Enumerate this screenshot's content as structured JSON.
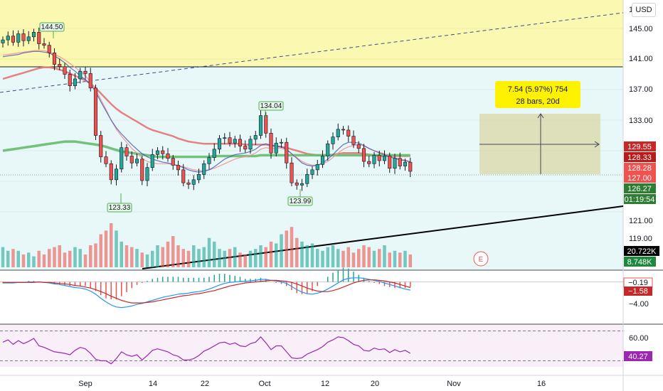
{
  "currency": "USD",
  "price_axis": {
    "ticks": [
      "145.00",
      "141.00",
      "137.00",
      "133.00",
      "121.00",
      "119.00"
    ],
    "top_partial_label": "1"
  },
  "time_axis": [
    "Sep",
    "14",
    "22",
    "Oct",
    "12",
    "20",
    "Nov",
    "16"
  ],
  "price_badges": [
    {
      "label": "129.55",
      "color": "#c62828"
    },
    {
      "label": "128.33",
      "color": "#b71c1c"
    },
    {
      "label": "128.28",
      "color": "#ef5350"
    },
    {
      "label": "127.00",
      "color": "#ef5350"
    },
    {
      "label": "126.27",
      "color": "#2e7d32"
    },
    {
      "label": "01:19:54",
      "color": "#2e7d32"
    },
    {
      "label": "20.722K",
      "color": "#000000"
    },
    {
      "label": "8.748K",
      "color": "#1b8a3c"
    }
  ],
  "annotations": {
    "high_label": "144.50",
    "low_label_1": "123.33",
    "mid_high_label": "134.04",
    "low_label_2": "123.99",
    "measure_line1": "7.54 (5.97%) 754",
    "measure_line2": "28 bars, 20d",
    "earnings_marker": "E"
  },
  "macd_panel": {
    "ticks": [
      "−4.00"
    ],
    "badges": [
      {
        "label": "−0.19",
        "color": "#ffffff"
      },
      {
        "label": "−1.58",
        "color": "#c62828"
      }
    ]
  },
  "rsi_panel": {
    "ticks": [
      "60.00"
    ],
    "badges": [
      {
        "label": "40.27",
        "color": "#9c27b0"
      }
    ]
  },
  "colors": {
    "up": "#26a69a",
    "down": "#ef5350",
    "zone_yellow": "#fbf9b1",
    "zone_cyan": "#e8f8f8",
    "ma200": "#4caf50",
    "ma50": "#e53935"
  },
  "chart_data": {
    "type": "candlestick",
    "ylim": [
      117,
      148
    ],
    "closes": [
      143.5,
      144.0,
      143.2,
      144.3,
      143.4,
      143.9,
      144.5,
      143.0,
      142.8,
      141.8,
      140.3,
      140.0,
      139.0,
      137.5,
      138.4,
      139.4,
      139.1,
      137.2,
      131.0,
      128.2,
      127.3,
      125.2,
      126.6,
      129.4,
      128.3,
      127.4,
      127.9,
      125.1,
      126.8,
      128.5,
      129.0,
      128.6,
      128.0,
      127.1,
      126.5,
      124.8,
      124.6,
      125.2,
      125.9,
      127.3,
      128.1,
      129.2,
      130.6,
      130.7,
      130.0,
      130.5,
      129.6,
      129.2,
      130.5,
      131.0,
      133.6,
      131.3,
      128.7,
      130.0,
      130.1,
      127.4,
      124.8,
      124.5,
      124.7,
      125.9,
      126.5,
      127.2,
      128.3,
      129.9,
      130.8,
      131.8,
      131.7,
      130.9,
      129.8,
      129.3,
      127.6,
      127.3,
      128.4,
      127.7,
      128.3,
      126.7,
      128.0,
      127.0,
      127.5,
      126.3
    ],
    "volume": [
      0.55,
      0.45,
      0.5,
      0.45,
      0.35,
      0.4,
      0.3,
      0.45,
      0.35,
      0.5,
      0.55,
      0.6,
      0.4,
      0.45,
      0.55,
      0.5,
      0.35,
      0.6,
      0.65,
      0.9,
      1.0,
      1.2,
      1.0,
      0.7,
      0.6,
      0.55,
      0.5,
      0.4,
      0.35,
      0.45,
      0.6,
      0.55,
      0.7,
      0.85,
      0.6,
      0.5,
      0.45,
      0.6,
      0.5,
      0.55,
      0.8,
      0.7,
      0.5,
      0.45,
      0.5,
      0.55,
      0.4,
      0.35,
      0.45,
      0.5,
      0.6,
      0.55,
      0.7,
      0.65,
      0.9,
      1.0,
      1.1,
      0.8,
      0.7,
      0.6,
      0.65,
      0.5,
      0.45,
      0.55,
      0.6,
      0.5,
      0.45,
      0.55,
      0.4,
      0.5,
      0.6,
      0.55,
      0.45,
      0.5,
      0.6,
      0.4,
      0.45,
      0.4,
      0.45,
      0.35
    ],
    "series": [
      {
        "values": [
          138.4,
          138.6,
          138.8,
          139.0,
          139.2,
          139.4,
          139.6,
          139.8,
          139.9,
          139.9,
          139.8,
          139.6,
          139.4,
          139.1,
          138.8,
          138.5,
          138.2,
          137.8,
          137.2,
          136.5,
          135.8,
          135.1,
          134.5,
          134.0,
          133.6,
          133.2,
          132.8,
          132.4,
          132.0,
          131.7,
          131.5,
          131.3,
          131.1,
          130.9,
          130.6,
          130.4,
          130.2,
          130.1,
          130.0,
          129.9,
          129.9,
          129.9,
          129.9,
          129.9,
          129.9,
          129.9,
          129.9,
          129.8,
          129.8,
          129.8,
          129.8,
          129.8,
          129.7,
          129.6,
          129.5,
          129.4,
          129.2,
          129.0,
          128.8,
          128.6,
          128.5,
          128.4,
          128.4,
          128.4,
          128.5,
          128.6,
          128.7,
          128.7,
          128.7,
          128.7,
          128.6,
          128.5,
          128.4,
          128.3,
          128.3,
          128.3,
          128.3,
          128.3,
          128.3,
          128.3
        ]
      },
      {
        "values": [
          129.0,
          129.1,
          129.2,
          129.3,
          129.4,
          129.5,
          129.6,
          129.7,
          129.8,
          129.9,
          130.0,
          130.1,
          130.2,
          130.2,
          130.2,
          130.1,
          130.0,
          129.9,
          129.8,
          129.7,
          129.5,
          129.3,
          129.1,
          128.9,
          128.8,
          128.7,
          128.6,
          128.5,
          128.4,
          128.3,
          128.2,
          128.2,
          128.2,
          128.2,
          128.2,
          128.2,
          128.2,
          128.2,
          128.2,
          128.2,
          128.2,
          128.3,
          128.3,
          128.3,
          128.3,
          128.3,
          128.3,
          128.3,
          128.3,
          128.3,
          128.4,
          128.4,
          128.4,
          128.4,
          128.4,
          128.4,
          128.4,
          128.4,
          128.4,
          128.4,
          128.4,
          128.4,
          128.4,
          128.4,
          128.4,
          128.4,
          128.4,
          128.4,
          128.4,
          128.4,
          128.4,
          128.4,
          128.4,
          128.4,
          128.4,
          128.4,
          128.4,
          128.4,
          128.4,
          128.4
        ]
      },
      {
        "values": [
          141.5,
          141.6,
          141.7,
          141.8,
          141.9,
          142.0,
          142.1,
          142.1,
          142.1,
          141.9,
          141.6,
          141.3,
          140.9,
          140.4,
          139.9,
          139.4,
          138.8,
          138.0,
          137.0,
          135.7,
          134.4,
          133.0,
          131.8,
          130.9,
          130.1,
          129.3,
          128.7,
          128.0,
          127.6,
          127.4,
          127.3,
          127.3,
          127.3,
          127.2,
          127.1,
          126.9,
          126.7,
          126.5,
          126.4,
          126.4,
          126.5,
          126.7,
          127.0,
          127.3,
          127.6,
          127.9,
          128.1,
          128.2,
          128.4,
          128.7,
          129.2,
          129.4,
          129.3,
          129.3,
          129.3,
          129.1,
          128.6,
          128.1,
          127.6,
          127.3,
          127.1,
          127.1,
          127.3,
          127.6,
          128.1,
          128.7,
          129.2,
          129.5,
          129.7,
          129.8,
          129.6,
          129.3,
          129.0,
          128.8,
          128.6,
          128.3,
          128.1,
          127.9,
          127.8,
          127.6
        ]
      },
      {
        "values": [
          141.3,
          141.4,
          141.5,
          141.6,
          141.8,
          141.9,
          142.0,
          142.0,
          141.9,
          141.8,
          141.4,
          141.0,
          140.5,
          139.9,
          139.4,
          138.8,
          138.3,
          137.7,
          136.7,
          135.4,
          134.2,
          133.0,
          132.0,
          131.2,
          130.5,
          129.8,
          129.2,
          128.6,
          128.2,
          127.9,
          127.7,
          127.5,
          127.4,
          127.2,
          127.0,
          126.8,
          126.5,
          126.3,
          126.2,
          126.3,
          126.5,
          126.9,
          127.4,
          127.9,
          128.2,
          128.5,
          128.6,
          128.7,
          128.9,
          129.2,
          129.7,
          129.9,
          129.7,
          129.6,
          129.5,
          129.2,
          128.6,
          128.0,
          127.4,
          127.1,
          127.0,
          127.1,
          127.4,
          127.9,
          128.5,
          129.2,
          129.8,
          130.1,
          130.1,
          130.0,
          129.7,
          129.3,
          129.0,
          128.7,
          128.5,
          128.2,
          128.0,
          127.8,
          127.7,
          127.5
        ]
      }
    ],
    "macd": [
      -0.2,
      -0.2,
      -0.2,
      -0.1,
      -0.1,
      0.0,
      0.0,
      0.0,
      -0.1,
      -0.2,
      -0.4,
      -0.5,
      -0.7,
      -0.9,
      -1.1,
      -1.2,
      -1.4,
      -1.8,
      -2.4,
      -3.2,
      -3.9,
      -4.5,
      -4.9,
      -5.0,
      -4.9,
      -4.7,
      -4.4,
      -4.2,
      -3.9,
      -3.6,
      -3.3,
      -3.0,
      -2.8,
      -2.6,
      -2.4,
      -2.3,
      -2.2,
      -2.0,
      -1.9,
      -1.7,
      -1.4,
      -1.0,
      -0.6,
      -0.3,
      -0.1,
      0.0,
      0.1,
      0.1,
      0.2,
      0.3,
      0.5,
      0.5,
      0.3,
      0.2,
      0.0,
      -0.3,
      -0.9,
      -1.5,
      -2.0,
      -2.3,
      -2.4,
      -2.2,
      -1.9,
      -1.4,
      -0.8,
      -0.2,
      0.4,
      0.7,
      0.8,
      0.8,
      0.7,
      0.5,
      0.3,
      0.1,
      -0.2,
      -0.5,
      -0.8,
      -1.1,
      -1.4,
      -1.6
    ],
    "macd_signal": [
      -0.1,
      -0.1,
      -0.1,
      -0.1,
      -0.1,
      -0.1,
      -0.1,
      0.0,
      -0.1,
      -0.1,
      -0.2,
      -0.3,
      -0.4,
      -0.5,
      -0.7,
      -0.8,
      -1.0,
      -1.2,
      -1.5,
      -1.9,
      -2.3,
      -2.8,
      -3.2,
      -3.6,
      -3.9,
      -4.1,
      -4.1,
      -4.1,
      -4.0,
      -3.9,
      -3.7,
      -3.5,
      -3.3,
      -3.1,
      -2.9,
      -2.7,
      -2.6,
      -2.4,
      -2.3,
      -2.1,
      -1.9,
      -1.7,
      -1.4,
      -1.1,
      -0.8,
      -0.6,
      -0.4,
      -0.2,
      -0.1,
      0.0,
      0.1,
      0.2,
      0.3,
      0.3,
      0.2,
      0.1,
      -0.1,
      -0.4,
      -0.8,
      -1.2,
      -1.5,
      -1.8,
      -1.9,
      -1.9,
      -1.7,
      -1.4,
      -1.0,
      -0.6,
      -0.2,
      0.1,
      0.3,
      0.4,
      0.4,
      0.3,
      0.2,
      0.0,
      -0.2,
      -0.5,
      -0.8,
      -1.1
    ],
    "rsi": [
      55,
      58,
      52,
      57,
      53,
      56,
      60,
      50,
      48,
      45,
      42,
      41,
      40,
      38,
      44,
      48,
      46,
      40,
      32,
      30,
      30,
      26,
      33,
      42,
      38,
      36,
      38,
      31,
      37,
      44,
      46,
      44,
      42,
      38,
      36,
      31,
      31,
      33,
      37,
      43,
      46,
      50,
      54,
      55,
      52,
      54,
      50,
      49,
      53,
      55,
      62,
      54,
      45,
      50,
      50,
      42,
      34,
      33,
      34,
      39,
      42,
      45,
      49,
      55,
      58,
      62,
      61,
      57,
      52,
      50,
      44,
      43,
      47,
      45,
      46,
      41,
      45,
      42,
      44,
      40
    ]
  }
}
